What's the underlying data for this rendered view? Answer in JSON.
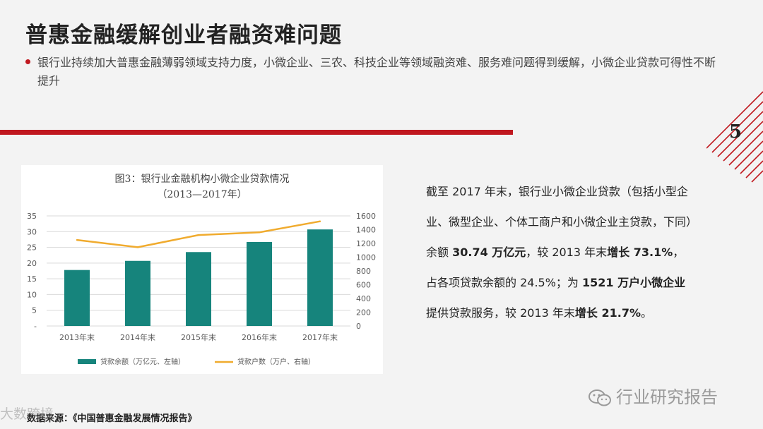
{
  "slide": {
    "title": "普惠金融缓解创业者融资难问题",
    "bullet": "银行业持续加大普惠金融薄弱领域支持力度，小微企业、三农、科技企业等领域融资难、服务难问题得到缓解，小微企业贷款可得性不断提升",
    "page_number": "5",
    "accent_color": "#c0181f"
  },
  "right_text": {
    "p1": "截至 2017 年末，银行业小微企业贷款（包括小型企业、微型企业、个体工商户和小微企业主贷款，下同）余额 ",
    "b1": "30.74 万亿元",
    "p2": "，较 2013 年末",
    "b2": "增长 73.1%",
    "p3": "，占各项贷款余额的 24.5%；为 ",
    "b3": "1521 万户小微企业",
    "p4": "提供贷款服务，较 2013 年末",
    "b4": "增长 21.7%",
    "p5": "。"
  },
  "source": "数据来源：《中国普惠金融发展情况报告》",
  "watermarks": {
    "left": "大数跨境",
    "right": "行业研究报告",
    "right_icon": "wechat-icon"
  },
  "chart_data": {
    "type": "bar+line",
    "title": "图3：银行业金融机构小微企业贷款情况",
    "subtitle": "（2013—2017年）",
    "categories": [
      "2013年末",
      "2014年末",
      "2015年末",
      "2016年末",
      "2017年末"
    ],
    "left_axis": {
      "ylim": [
        0,
        35
      ],
      "ticks": [
        0,
        5,
        10,
        15,
        20,
        25,
        30,
        35
      ],
      "tick_labels": [
        "-",
        "5",
        "10",
        "15",
        "20",
        "25",
        "30",
        "35"
      ]
    },
    "right_axis": {
      "ylim": [
        0,
        1600
      ],
      "ticks": [
        0,
        200,
        400,
        600,
        800,
        1000,
        1200,
        1400,
        1600
      ],
      "tick_labels": [
        "0",
        "200",
        "400",
        "600",
        "800",
        "1000",
        "1200",
        "1400",
        "1600"
      ]
    },
    "series": [
      {
        "name": "贷款余额（万亿元、左轴）",
        "kind": "bar",
        "axis": "left",
        "color": "#16847c",
        "values": [
          17.8,
          20.7,
          23.5,
          26.7,
          30.7
        ]
      },
      {
        "name": "贷款户数（万户、右轴）",
        "kind": "line",
        "axis": "right",
        "color": "#f0ab2e",
        "values": [
          1250,
          1145,
          1322,
          1361,
          1521
        ]
      }
    ],
    "legend_position": "bottom",
    "grid": true
  }
}
